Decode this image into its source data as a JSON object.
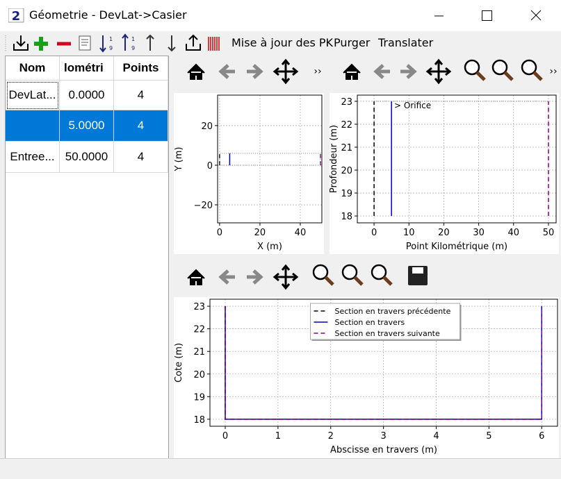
{
  "window": {
    "title": "Géometrie - DevLat->Casier"
  },
  "toolbar": {
    "actions": [
      "Mise à jour des PK",
      "Purger",
      "Translater"
    ]
  },
  "table": {
    "header": [
      "Nom",
      "lométri",
      "Points"
    ],
    "rows": [
      [
        "DevLat...",
        "0.0000",
        "4"
      ],
      [
        "",
        "5.0000",
        "4"
      ],
      [
        "Entree...",
        "50.0000",
        "4"
      ]
    ]
  },
  "chart_data": [
    {
      "type": "line",
      "xlabel": "X (m)",
      "ylabel": "Y (m)",
      "xlim": [
        -1,
        50.7
      ],
      "ylim": [
        -29.1,
        35.4
      ],
      "xticks": [
        0,
        20,
        40
      ],
      "yticks": [
        {
          "value": -20,
          "label": "−20"
        },
        0,
        20
      ],
      "grid": true,
      "series": [
        {
          "color": "#000000",
          "style": "dashed",
          "x": [
            0,
            0
          ],
          "values": [
            0,
            6
          ]
        },
        {
          "color": "#0000cc",
          "style": "solid",
          "x": [
            5,
            5
          ],
          "values": [
            0,
            6
          ]
        },
        {
          "color": "#800080",
          "style": "dashed",
          "x": [
            50,
            50
          ],
          "values": [
            0,
            6
          ]
        },
        {
          "color": "#808080",
          "style": "dotted",
          "x": [
            0,
            50,
            50,
            0,
            0
          ],
          "values": [
            0,
            0,
            6,
            6,
            0
          ]
        }
      ]
    },
    {
      "type": "line",
      "xlabel": "Point Kilométrique (m)",
      "ylabel": "Profondeur (m)",
      "xlim": [
        -4.8,
        52.2
      ],
      "ylim": [
        17.7,
        23.27
      ],
      "xticks": [
        0,
        10,
        20,
        30,
        40,
        50
      ],
      "yticks": [
        18,
        19,
        20,
        21,
        22,
        23
      ],
      "grid": true,
      "annotation": "> Orifice",
      "series": [
        {
          "color": "#000000",
          "style": "dashed",
          "x": [
            0,
            0
          ],
          "values": [
            18,
            23
          ]
        },
        {
          "color": "#0000cc",
          "style": "solid",
          "x": [
            5,
            5
          ],
          "values": [
            18,
            23
          ]
        },
        {
          "color": "#800080",
          "style": "dashed",
          "x": [
            50,
            50
          ],
          "values": [
            18,
            23
          ]
        },
        {
          "color": "#808080",
          "style": "dotted",
          "x": [
            0,
            50
          ],
          "values": [
            23,
            23
          ]
        }
      ]
    },
    {
      "type": "line",
      "xlabel": "Abscisse en travers (m)",
      "ylabel": "Cote (m)",
      "xlim": [
        -0.29,
        6.3
      ],
      "ylim": [
        17.69,
        23.31
      ],
      "xticks": [
        0,
        1,
        2,
        3,
        4,
        5,
        6
      ],
      "yticks": [
        18,
        19,
        20,
        21,
        22,
        23
      ],
      "grid": true,
      "legend": "upper center",
      "series": [
        {
          "name": "Section en travers précédente",
          "color": "#000000",
          "style": "dashed",
          "x": [
            0,
            0,
            6,
            6
          ],
          "values": [
            23,
            18,
            18,
            23
          ]
        },
        {
          "name": "Section en travers",
          "color": "#0000cc",
          "style": "solid",
          "x": [
            0,
            0,
            6,
            6
          ],
          "values": [
            23,
            18,
            18,
            23
          ]
        },
        {
          "name": "Section en travers suivante",
          "color": "#800080",
          "style": "dashed",
          "x": [
            0,
            0,
            6,
            6
          ],
          "values": [
            23,
            18,
            18,
            23
          ]
        }
      ]
    }
  ]
}
